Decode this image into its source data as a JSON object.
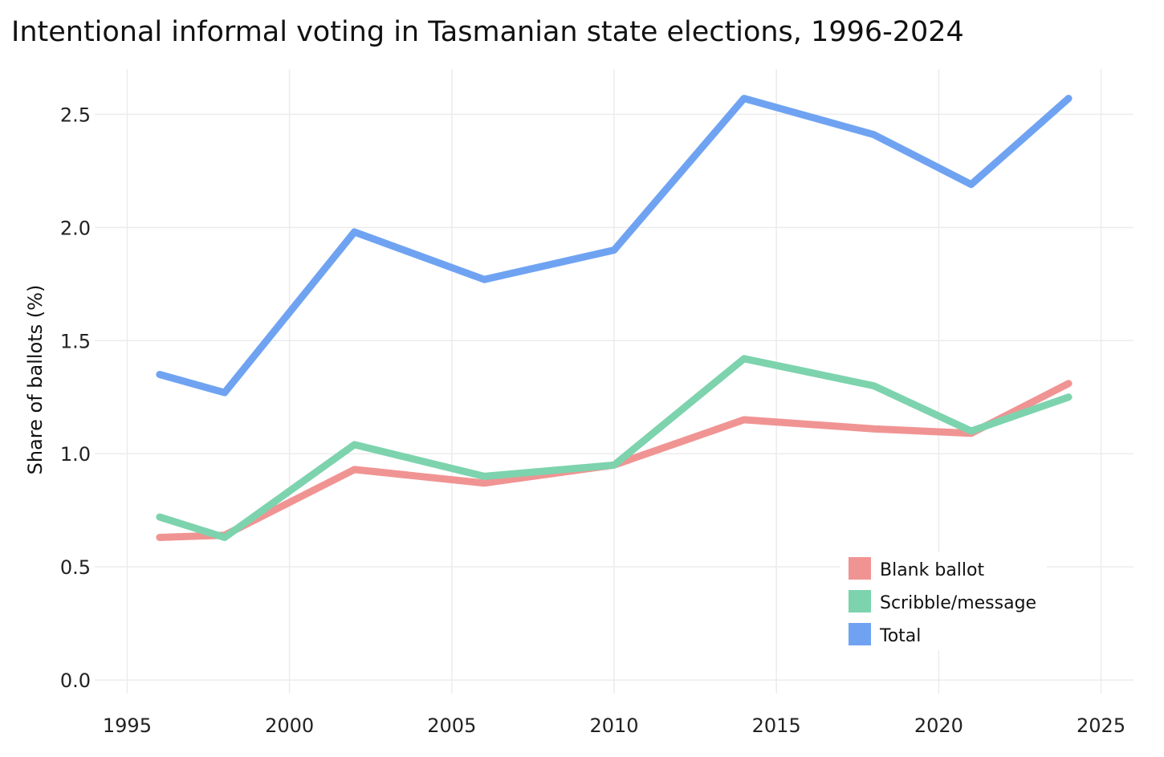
{
  "chart_data": {
    "type": "line",
    "title": "Intentional informal voting in Tasmanian state elections, 1996-2024",
    "xlabel": "",
    "ylabel": "Share of ballots (%)",
    "x": [
      1996,
      1998,
      2002,
      2006,
      2010,
      2014,
      2018,
      2021,
      2024
    ],
    "xlim": [
      1994,
      2026
    ],
    "ylim": [
      -0.06,
      2.7
    ],
    "xticks": [
      1995,
      2000,
      2005,
      2010,
      2015,
      2020,
      2025
    ],
    "yticks": [
      0.0,
      0.5,
      1.0,
      1.5,
      2.0,
      2.5
    ],
    "xtick_labels": [
      "1995",
      "2000",
      "2005",
      "2010",
      "2015",
      "2020",
      "2025"
    ],
    "ytick_labels": [
      "0.0",
      "0.5",
      "1.0",
      "1.5",
      "2.0",
      "2.5"
    ],
    "grid": true,
    "legend_position": "bottom-right",
    "series": [
      {
        "name": "Blank ballot",
        "color": "#f09493",
        "values": [
          0.63,
          0.64,
          0.93,
          0.87,
          0.95,
          1.15,
          1.11,
          1.09,
          1.31
        ]
      },
      {
        "name": "Scribble/message",
        "color": "#7dd3ad",
        "values": [
          0.72,
          0.63,
          1.04,
          0.9,
          0.95,
          1.42,
          1.3,
          1.1,
          1.25
        ]
      },
      {
        "name": "Total",
        "color": "#6fa3f2",
        "values": [
          1.35,
          1.27,
          1.98,
          1.77,
          1.9,
          2.57,
          2.41,
          2.19,
          2.57
        ]
      }
    ]
  }
}
